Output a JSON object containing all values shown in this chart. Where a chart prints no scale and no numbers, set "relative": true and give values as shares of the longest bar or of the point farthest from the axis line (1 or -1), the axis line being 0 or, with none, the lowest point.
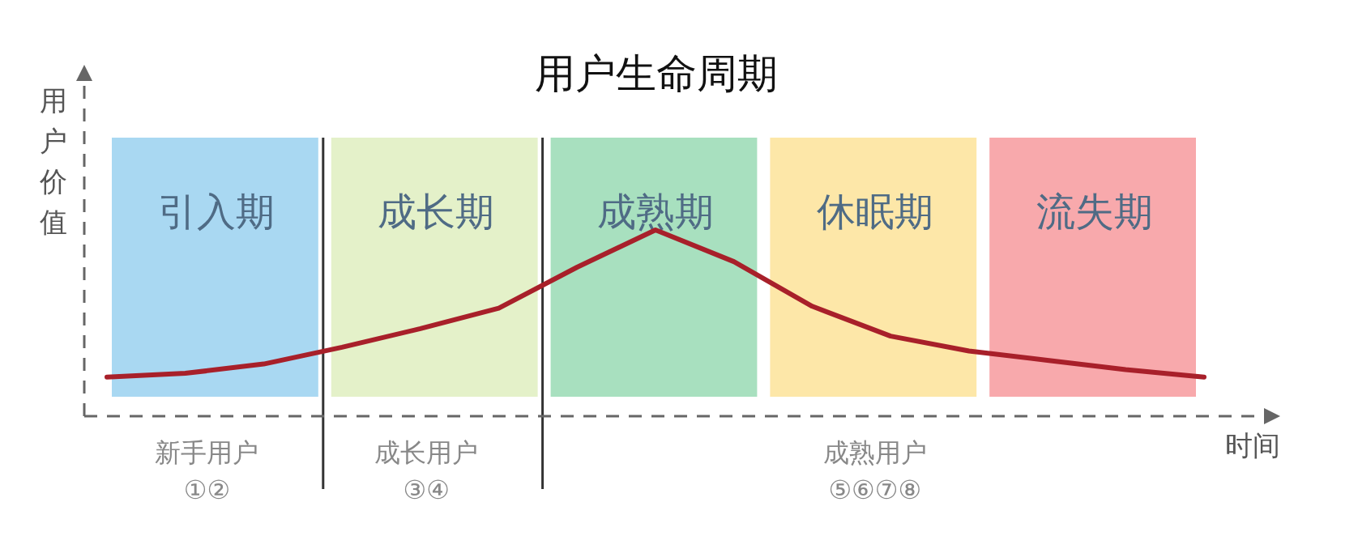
{
  "chart_data": {
    "type": "line",
    "title": "用户生命周期",
    "xlabel": "时间",
    "ylabel": "用户价值",
    "relative": true,
    "categories": [
      null,
      null,
      null,
      null,
      null,
      null,
      null,
      null,
      null,
      null,
      null,
      null,
      null,
      null,
      null
    ],
    "series": [
      {
        "color": "#a8202a",
        "values": [
          0.21,
          0.23,
          0.28,
          0.37,
          0.47,
          0.58,
          0.8,
          1.0,
          0.83,
          0.59,
          0.43,
          0.35,
          0.3,
          0.25,
          0.21
        ]
      }
    ],
    "annotations": [
      "引入期",
      "成长期",
      "成熟期",
      "休眠期",
      "流失期",
      "新手用户\n①②",
      "成长用户\n③④",
      "成熟用户\n⑤⑥⑦⑧"
    ],
    "marker": "none",
    "line_style": "solid"
  }
}
